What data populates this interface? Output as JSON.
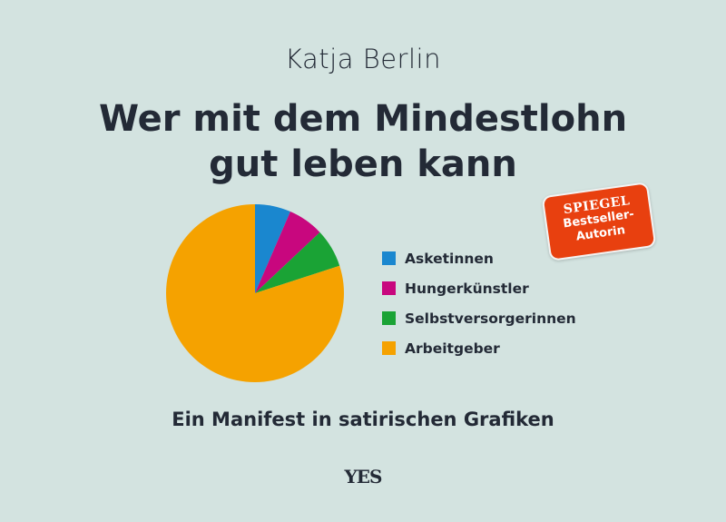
{
  "cover": {
    "author": "Katja Berlin",
    "title_line1": "Wer mit dem Mindestlohn",
    "title_line2": "gut leben kann",
    "subtitle": "Ein Manifest in satirischen Grafiken",
    "publisher_logo": "YES",
    "badge": {
      "line1": "SPIEGEL",
      "line2": "Bestseller-",
      "line3": "Autorin",
      "color": "#e8400f"
    },
    "background": "#d3e3e0"
  },
  "chart_data": {
    "type": "pie",
    "title": "",
    "categories": [
      "Asketinnen",
      "Hungerkünstler",
      "Selbstversorgerinnen",
      "Arbeitgeber"
    ],
    "values": [
      6.5,
      6.5,
      7,
      80
    ],
    "colors": [
      "#1a87cf",
      "#c8077e",
      "#1aa335",
      "#f5a200"
    ],
    "start_angle": "top, clockwise",
    "legend_placement": "right"
  }
}
